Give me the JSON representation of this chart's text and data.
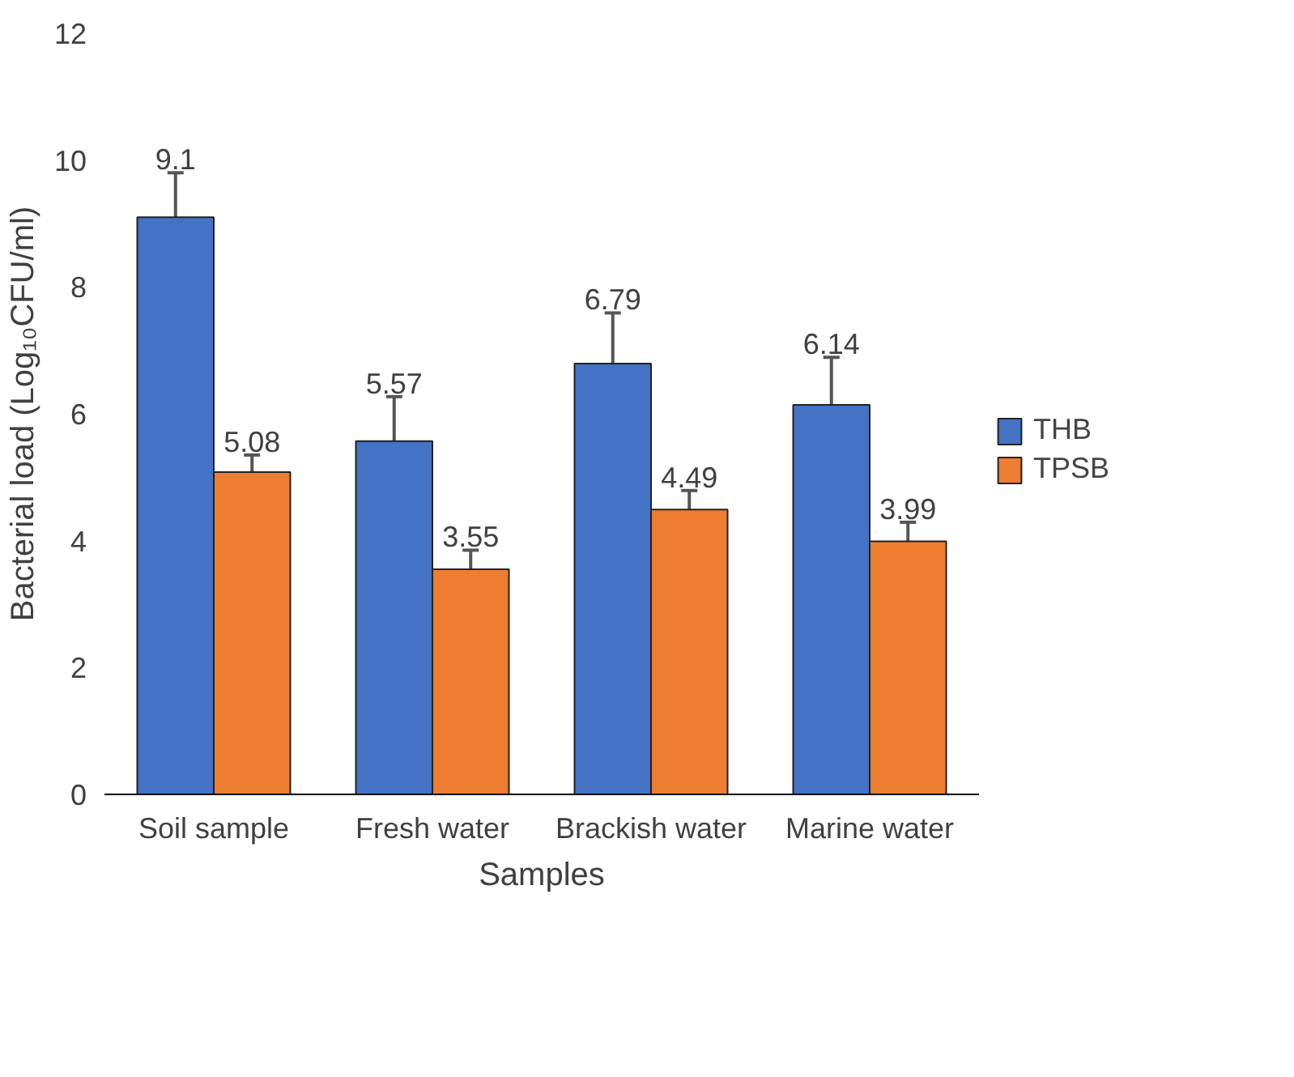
{
  "chart_data": {
    "type": "bar",
    "xlabel": "Samples",
    "ylabel": "Bacterial load (Log₁₀CFU/ml)",
    "categories": [
      "Soil sample",
      "Fresh water",
      "Brackish water",
      "Marine water"
    ],
    "series": [
      {
        "name": "THB",
        "color": "#4472c4",
        "values": [
          9.1,
          5.57,
          6.79,
          6.14
        ],
        "errors": [
          0.7,
          0.7,
          0.8,
          0.75
        ]
      },
      {
        "name": "TPSB",
        "color": "#ed7d31",
        "values": [
          5.08,
          3.55,
          4.49,
          3.99
        ],
        "errors": [
          0.27,
          0.3,
          0.3,
          0.3
        ]
      }
    ],
    "ylim": [
      0,
      12
    ],
    "yticks": [
      0,
      2,
      4,
      6,
      8,
      10,
      12
    ],
    "grid": false,
    "legend": "right",
    "data_labels": true
  }
}
